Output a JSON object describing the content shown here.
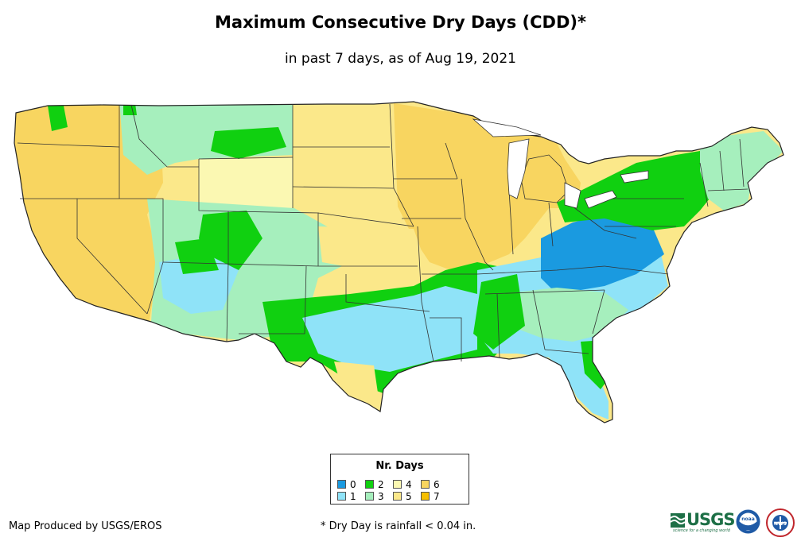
{
  "title": "Maximum Consecutive Dry Days (CDD)*",
  "subtitle": "in past 7 days, as of Aug 19, 2021",
  "legend": {
    "title": "Nr. Days",
    "items": [
      {
        "label": "0",
        "color": "#1a9ae0"
      },
      {
        "label": "1",
        "color": "#8fe3f8"
      },
      {
        "label": "2",
        "color": "#10d010"
      },
      {
        "label": "3",
        "color": "#a6efbd"
      },
      {
        "label": "4",
        "color": "#fbf8b2"
      },
      {
        "label": "5",
        "color": "#fbe88a"
      },
      {
        "label": "6",
        "color": "#f8d560"
      },
      {
        "label": "7",
        "color": "#f6bf00"
      }
    ]
  },
  "credit": "Map Produced by USGS/EROS",
  "footnote": "* Dry Day is rainfall < 0.04 in.",
  "logos": {
    "usgs": "USGS",
    "usgs_tagline": "science for a changing world",
    "noaa": "noaa",
    "nws": "NWS"
  },
  "map": {
    "regions": [
      {
        "name": "west-coast-band",
        "days": 6
      },
      {
        "name": "northern-rockies",
        "days": 3
      },
      {
        "name": "wyoming-basin",
        "days": 4
      },
      {
        "name": "northern-plains",
        "days": 5
      },
      {
        "name": "upper-midwest",
        "days": 6
      },
      {
        "name": "southwest",
        "days": 3
      },
      {
        "name": "southern-plains",
        "days": 2
      },
      {
        "name": "south-central",
        "days": 1
      },
      {
        "name": "southeast",
        "days": 1
      },
      {
        "name": "appalachians",
        "days": 0
      },
      {
        "name": "northeast",
        "days": 2
      },
      {
        "name": "new-england",
        "days": 3
      }
    ]
  }
}
